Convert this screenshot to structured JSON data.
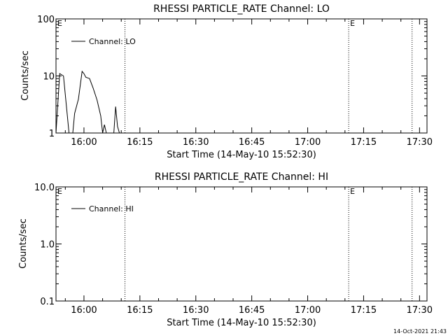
{
  "chart_data": [
    {
      "type": "line",
      "title": "RHESSI PARTICLE_RATE Channel: LO",
      "xlabel": "Start Time (14-May-10 15:52:30)",
      "ylabel": "Counts/sec",
      "yscale": "log",
      "ylim": [
        1,
        100
      ],
      "xlim": [
        "15:52:30",
        "17:32:00"
      ],
      "x_ticks": [
        "16:00",
        "16:15",
        "16:30",
        "16:45",
        "17:00",
        "17:15",
        "17:30"
      ],
      "y_ticks": [
        "1",
        "10",
        "100"
      ],
      "legend": {
        "label": "Channel: LO",
        "position": "top-left"
      },
      "event_lines": [
        "16:11:00",
        "17:11:00",
        "17:28:00"
      ],
      "event_markers": [
        {
          "text": "E",
          "time": "15:52:30"
        },
        {
          "text": "E",
          "time": "17:11:00"
        }
      ],
      "series": [
        {
          "name": "Channel: LO",
          "x": [
            "15:52:30",
            "15:53:30",
            "15:54:30",
            "15:56:00",
            "15:57:00",
            "15:57:30",
            "15:58:30",
            "15:59:30",
            "16:00:00",
            "16:00:30",
            "16:01:30",
            "16:02:30",
            "16:03:30",
            "16:04:30",
            "16:05:00",
            "16:05:30",
            "16:06:00",
            "16:06:30",
            "16:07:00",
            "16:07:30",
            "16:08:00",
            "16:08:30",
            "16:09:00",
            "16:09:30",
            "16:10:00",
            "16:10:30"
          ],
          "y": [
            1,
            11,
            10,
            1,
            1,
            2.2,
            3.9,
            12,
            11,
            9.5,
            9,
            6,
            3.8,
            2,
            1,
            1.4,
            1,
            1,
            1,
            1,
            1,
            2.9,
            1.3,
            1,
            1,
            1
          ]
        }
      ]
    },
    {
      "type": "line",
      "title": "RHESSI PARTICLE_RATE Channel: HI",
      "xlabel": "Start Time (14-May-10 15:52:30)",
      "ylabel": "Counts/sec",
      "yscale": "log",
      "ylim": [
        0.1,
        10.0
      ],
      "xlim": [
        "15:52:30",
        "17:32:00"
      ],
      "x_ticks": [
        "16:00",
        "16:15",
        "16:30",
        "16:45",
        "17:00",
        "17:15",
        "17:30"
      ],
      "y_ticks": [
        "0.1",
        "1.0",
        "10.0"
      ],
      "legend": {
        "label": "Channel: HI",
        "position": "top-left"
      },
      "event_lines": [
        "16:11:00",
        "17:11:00",
        "17:28:00"
      ],
      "event_markers": [
        {
          "text": "E",
          "time": "15:52:30"
        },
        {
          "text": "E",
          "time": "17:11:00"
        }
      ],
      "series": [
        {
          "name": "Channel: HI",
          "x": [],
          "y": []
        }
      ]
    }
  ],
  "footer": {
    "timestamp": "14-Oct-2021 21:43"
  }
}
